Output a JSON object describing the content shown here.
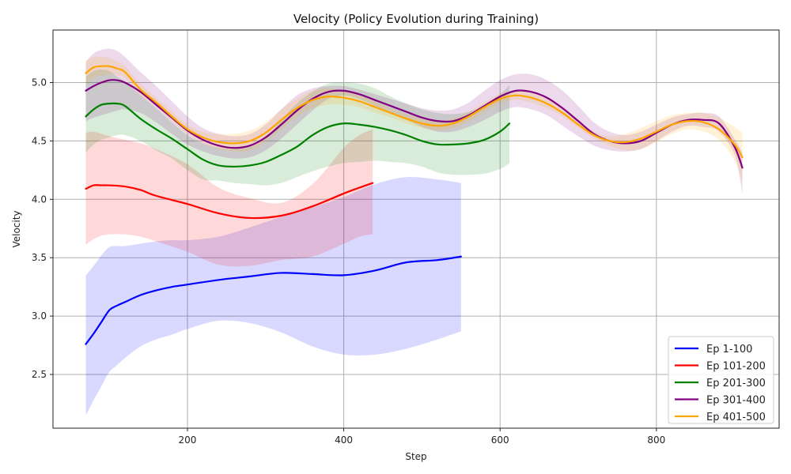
{
  "chart_data": {
    "type": "line",
    "title": "Velocity (Policy Evolution during Training)",
    "xlabel": "Step",
    "ylabel": "Velocity",
    "xlim": [
      28,
      957
    ],
    "ylim": [
      2.04,
      5.45
    ],
    "xticks": [
      200,
      400,
      600,
      800
    ],
    "yticks": [
      2.5,
      3.0,
      3.5,
      4.0,
      4.5,
      5.0
    ],
    "xtick_labels": [
      "200",
      "400",
      "600",
      "800"
    ],
    "ytick_labels": [
      "2.5",
      "3.0",
      "3.5",
      "4.0",
      "4.5",
      "5.0"
    ],
    "grid": true,
    "legend_position": "bottom-right",
    "series": [
      {
        "name": "Ep 1-100",
        "color": "#0000ff",
        "x": [
          70,
          80,
          90,
          100,
          110,
          120,
          140,
          160,
          180,
          200,
          240,
          280,
          320,
          360,
          400,
          440,
          480,
          520,
          550
        ],
        "y": [
          2.76,
          2.85,
          2.95,
          3.05,
          3.09,
          3.12,
          3.18,
          3.22,
          3.25,
          3.27,
          3.31,
          3.34,
          3.37,
          3.36,
          3.35,
          3.39,
          3.46,
          3.48,
          3.51
        ],
        "upper": [
          3.35,
          3.43,
          3.52,
          3.59,
          3.6,
          3.6,
          3.62,
          3.64,
          3.65,
          3.65,
          3.68,
          3.76,
          3.85,
          3.93,
          4.02,
          4.13,
          4.19,
          4.17,
          4.14
        ],
        "lower": [
          2.15,
          2.28,
          2.4,
          2.52,
          2.58,
          2.64,
          2.74,
          2.8,
          2.84,
          2.89,
          2.96,
          2.94,
          2.86,
          2.74,
          2.67,
          2.67,
          2.72,
          2.8,
          2.87
        ]
      },
      {
        "name": "Ep 101-200",
        "color": "#ff0000",
        "x": [
          70,
          80,
          90,
          100,
          120,
          140,
          160,
          200,
          240,
          280,
          320,
          360,
          400,
          420,
          437
        ],
        "y": [
          4.09,
          4.12,
          4.12,
          4.12,
          4.11,
          4.08,
          4.03,
          3.96,
          3.88,
          3.84,
          3.86,
          3.94,
          4.05,
          4.1,
          4.14
        ],
        "upper": [
          4.57,
          4.58,
          4.56,
          4.54,
          4.51,
          4.48,
          4.43,
          4.3,
          4.1,
          4.01,
          3.97,
          4.13,
          4.44,
          4.55,
          4.6
        ],
        "lower": [
          3.61,
          3.66,
          3.69,
          3.7,
          3.7,
          3.68,
          3.64,
          3.55,
          3.44,
          3.43,
          3.48,
          3.51,
          3.62,
          3.68,
          3.7
        ]
      },
      {
        "name": "Ep 201-300",
        "color": "#008000",
        "x": [
          70,
          80,
          90,
          100,
          110,
          120,
          140,
          160,
          180,
          200,
          220,
          240,
          260,
          280,
          300,
          320,
          340,
          360,
          380,
          400,
          420,
          440,
          460,
          480,
          500,
          520,
          540,
          560,
          580,
          600,
          612
        ],
        "y": [
          4.71,
          4.77,
          4.81,
          4.82,
          4.82,
          4.8,
          4.69,
          4.6,
          4.52,
          4.43,
          4.34,
          4.29,
          4.28,
          4.29,
          4.32,
          4.38,
          4.45,
          4.55,
          4.62,
          4.65,
          4.64,
          4.62,
          4.59,
          4.55,
          4.5,
          4.47,
          4.47,
          4.48,
          4.51,
          4.58,
          4.65
        ],
        "upper": [
          5.05,
          5.1,
          5.11,
          5.1,
          5.05,
          5.01,
          4.89,
          4.78,
          4.66,
          4.55,
          4.48,
          4.44,
          4.43,
          4.45,
          4.52,
          4.68,
          4.82,
          4.92,
          4.99,
          5.0,
          4.99,
          4.95,
          4.88,
          4.82,
          4.77,
          4.74,
          4.73,
          4.75,
          4.81,
          4.9,
          4.98
        ],
        "lower": [
          4.4,
          4.47,
          4.51,
          4.53,
          4.55,
          4.55,
          4.5,
          4.42,
          4.35,
          4.25,
          4.17,
          4.16,
          4.14,
          4.13,
          4.12,
          4.14,
          4.19,
          4.24,
          4.28,
          4.31,
          4.32,
          4.33,
          4.32,
          4.31,
          4.28,
          4.23,
          4.21,
          4.21,
          4.22,
          4.26,
          4.31
        ]
      },
      {
        "name": "Ep 301-400",
        "color": "#800080",
        "x": [
          70,
          80,
          90,
          100,
          110,
          120,
          140,
          160,
          180,
          200,
          220,
          240,
          260,
          280,
          300,
          320,
          340,
          360,
          380,
          400,
          420,
          440,
          460,
          480,
          500,
          520,
          540,
          560,
          580,
          600,
          620,
          640,
          660,
          680,
          700,
          720,
          740,
          760,
          780,
          800,
          820,
          840,
          860,
          880,
          900,
          910
        ],
        "y": [
          4.93,
          4.97,
          5.0,
          5.02,
          5.02,
          5.0,
          4.92,
          4.81,
          4.7,
          4.59,
          4.51,
          4.46,
          4.44,
          4.46,
          4.53,
          4.64,
          4.76,
          4.86,
          4.92,
          4.93,
          4.9,
          4.85,
          4.8,
          4.75,
          4.7,
          4.67,
          4.67,
          4.72,
          4.8,
          4.88,
          4.93,
          4.92,
          4.87,
          4.78,
          4.67,
          4.56,
          4.5,
          4.48,
          4.5,
          4.57,
          4.64,
          4.68,
          4.68,
          4.65,
          4.45,
          4.27
        ],
        "upper": [
          5.18,
          5.25,
          5.28,
          5.29,
          5.27,
          5.22,
          5.09,
          4.97,
          4.84,
          4.71,
          4.61,
          4.56,
          4.54,
          4.56,
          4.64,
          4.77,
          4.89,
          4.95,
          4.97,
          4.97,
          4.94,
          4.9,
          4.86,
          4.82,
          4.78,
          4.76,
          4.77,
          4.83,
          4.93,
          5.02,
          5.07,
          5.07,
          5.02,
          4.93,
          4.8,
          4.66,
          4.58,
          4.55,
          4.58,
          4.64,
          4.7,
          4.73,
          4.74,
          4.71,
          4.52,
          4.4
        ],
        "lower": [
          4.67,
          4.7,
          4.72,
          4.74,
          4.76,
          4.77,
          4.74,
          4.66,
          4.56,
          4.47,
          4.41,
          4.37,
          4.35,
          4.36,
          4.42,
          4.52,
          4.64,
          4.76,
          4.86,
          4.89,
          4.86,
          4.8,
          4.74,
          4.68,
          4.62,
          4.58,
          4.58,
          4.62,
          4.68,
          4.75,
          4.79,
          4.77,
          4.72,
          4.63,
          4.54,
          4.46,
          4.42,
          4.41,
          4.43,
          4.5,
          4.58,
          4.63,
          4.62,
          4.58,
          4.38,
          4.05
        ]
      },
      {
        "name": "Ep 401-500",
        "color": "#ffa500",
        "x": [
          70,
          80,
          90,
          100,
          110,
          120,
          140,
          160,
          180,
          200,
          220,
          240,
          260,
          280,
          300,
          320,
          340,
          360,
          380,
          400,
          420,
          440,
          460,
          480,
          500,
          520,
          540,
          560,
          580,
          600,
          620,
          640,
          660,
          680,
          700,
          720,
          740,
          760,
          780,
          800,
          820,
          840,
          860,
          880,
          900,
          910
        ],
        "y": [
          5.08,
          5.13,
          5.14,
          5.14,
          5.12,
          5.09,
          4.94,
          4.83,
          4.71,
          4.6,
          4.53,
          4.49,
          4.48,
          4.5,
          4.57,
          4.68,
          4.78,
          4.85,
          4.88,
          4.87,
          4.84,
          4.79,
          4.74,
          4.69,
          4.65,
          4.63,
          4.65,
          4.71,
          4.79,
          4.86,
          4.89,
          4.87,
          4.82,
          4.74,
          4.64,
          4.55,
          4.5,
          4.49,
          4.52,
          4.58,
          4.64,
          4.67,
          4.66,
          4.6,
          4.47,
          4.36
        ],
        "upper": [
          5.19,
          5.22,
          5.22,
          5.21,
          5.18,
          5.14,
          4.99,
          4.87,
          4.75,
          4.64,
          4.58,
          4.56,
          4.56,
          4.59,
          4.66,
          4.77,
          4.86,
          4.93,
          4.95,
          4.93,
          4.89,
          4.84,
          4.78,
          4.73,
          4.69,
          4.67,
          4.69,
          4.75,
          4.83,
          4.9,
          4.93,
          4.91,
          4.86,
          4.77,
          4.67,
          4.58,
          4.54,
          4.56,
          4.61,
          4.67,
          4.72,
          4.74,
          4.74,
          4.7,
          4.62,
          4.57
        ],
        "lower": [
          4.98,
          5.04,
          5.06,
          5.07,
          5.06,
          5.04,
          4.89,
          4.79,
          4.67,
          4.56,
          4.48,
          4.43,
          4.41,
          4.42,
          4.49,
          4.6,
          4.71,
          4.78,
          4.81,
          4.81,
          4.79,
          4.74,
          4.7,
          4.65,
          4.61,
          4.59,
          4.61,
          4.67,
          4.75,
          4.82,
          4.85,
          4.83,
          4.78,
          4.71,
          4.61,
          4.52,
          4.46,
          4.42,
          4.43,
          4.49,
          4.56,
          4.6,
          4.58,
          4.51,
          4.33,
          4.16
        ]
      }
    ]
  }
}
